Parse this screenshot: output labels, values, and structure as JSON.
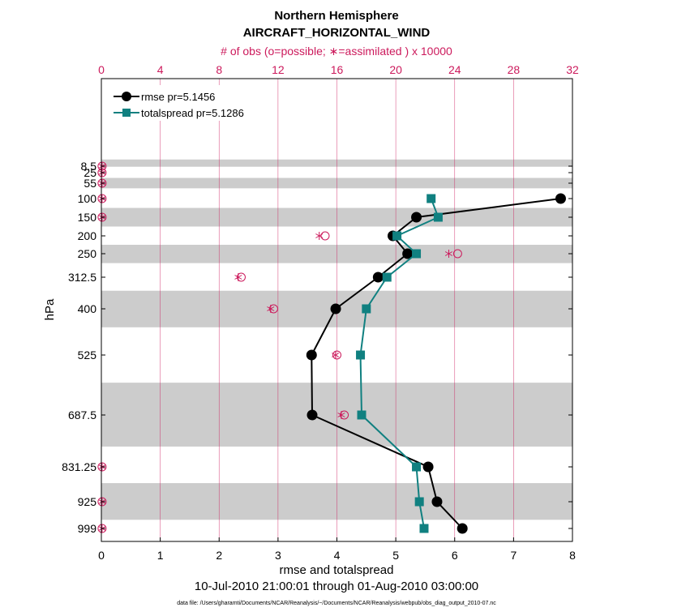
{
  "chart_data": {
    "type": "line",
    "title": "Northern Hemisphere",
    "subtitle": "AIRCRAFT_HORIZONTAL_WIND",
    "xlabel": "rmse and totalspread",
    "ylabel": "hPa",
    "top_xlabel": "# of obs (o=possible; ∗=assimilated ) x 10000",
    "date_range": "10-Jul-2010 21:00:01 through 01-Aug-2010 03:00:00",
    "data_file": "data file: /Users/gharamti/Documents/NCAR/Reanalysis/~/Documents/NCAR/Reanalysis/webpub/obs_diag_output_2010-07.nc",
    "xlim": [
      0,
      8
    ],
    "top_xlim": [
      0,
      32
    ],
    "x_ticks": [
      "0",
      "1",
      "2",
      "3",
      "4",
      "5",
      "6",
      "7",
      "8"
    ],
    "top_x_ticks": [
      "0",
      "4",
      "8",
      "12",
      "16",
      "20",
      "24",
      "28",
      "32"
    ],
    "levels": [
      8.5,
      25,
      55,
      100,
      150,
      200,
      250,
      312.5,
      400,
      525,
      687.5,
      831.25,
      925,
      999
    ],
    "level_labels": [
      "8.5",
      "25",
      "55",
      "100",
      "150",
      "200",
      "250",
      "312.5",
      "400",
      "525",
      "687.5",
      "831.25",
      "925",
      "999"
    ],
    "bands": [
      [
        2,
        10
      ],
      [
        40,
        70
      ],
      [
        125,
        175
      ],
      [
        225,
        275
      ],
      [
        350,
        450
      ],
      [
        600,
        775
      ],
      [
        875,
        975
      ]
    ],
    "series": [
      {
        "name": "rmse",
        "legend": "rmse pr=5.1456",
        "color": "#000000",
        "marker": "circle",
        "levels": [
          100,
          150,
          200,
          250,
          312.5,
          400,
          525,
          687.5,
          831.25,
          925,
          999
        ],
        "values": [
          7.8,
          5.35,
          4.95,
          5.2,
          4.7,
          3.98,
          3.57,
          3.58,
          5.55,
          5.7,
          6.13
        ]
      },
      {
        "name": "totalspread",
        "legend": "totalspread pr=5.1286",
        "color": "#108080",
        "marker": "square",
        "levels": [
          100,
          150,
          200,
          250,
          312.5,
          400,
          525,
          687.5,
          831.25,
          925,
          999
        ],
        "values": [
          5.6,
          5.72,
          5.02,
          5.35,
          4.85,
          4.5,
          4.4,
          4.42,
          5.35,
          5.4,
          5.48
        ]
      }
    ],
    "obs_possible": {
      "color": "#cc1a5c",
      "levels": [
        8.5,
        25,
        55,
        100,
        150,
        200,
        250,
        312.5,
        400,
        525,
        687.5,
        831.25,
        925,
        999
      ],
      "values": [
        0.05,
        0.05,
        0.05,
        0.05,
        0.05,
        15.2,
        24.2,
        9.5,
        11.7,
        16.0,
        16.5,
        0.05,
        0.05,
        0.05
      ]
    },
    "obs_assimilated": {
      "color": "#cc1a5c",
      "levels": [
        8.5,
        25,
        55,
        100,
        150,
        200,
        250,
        312.5,
        400,
        525,
        687.5,
        831.25,
        925,
        999
      ],
      "values": [
        0.05,
        0.05,
        0.05,
        0.05,
        0.05,
        14.8,
        23.6,
        9.3,
        11.5,
        15.9,
        16.3,
        0.05,
        0.05,
        0.05
      ]
    }
  }
}
